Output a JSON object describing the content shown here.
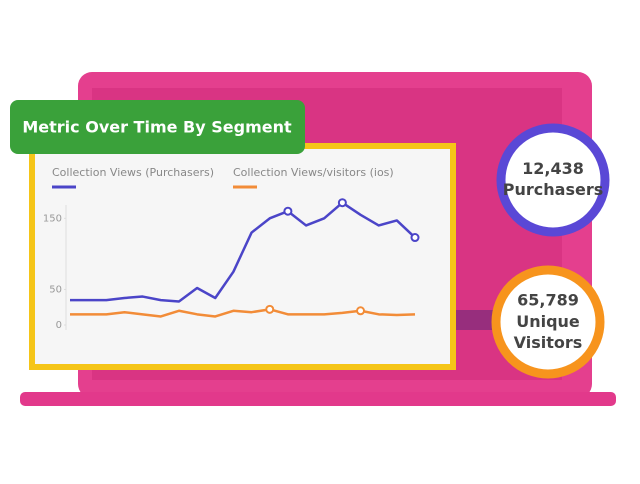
{
  "banner": "Metric Over Time By Segment",
  "badges": [
    {
      "value": "12,438",
      "label": "Purchasers",
      "color": "#5a48d6"
    },
    {
      "value": "65,789",
      "label": "Unique Visitors",
      "color": "#f7941d"
    }
  ],
  "chart_data": {
    "type": "line",
    "series": [
      {
        "name": "Collection Views (Purchasers)",
        "color": "#4b45c8",
        "values": [
          35,
          35,
          35,
          38,
          40,
          35,
          33,
          52,
          38,
          75,
          130,
          150,
          160,
          140,
          150,
          172,
          155,
          140,
          147,
          123
        ],
        "markers": [
          12,
          15,
          19
        ]
      },
      {
        "name": "Collection Views/visitors (ios)",
        "color": "#f28c38",
        "values": [
          15,
          15,
          15,
          18,
          15,
          12,
          20,
          15,
          12,
          20,
          18,
          22,
          15,
          15,
          15,
          17,
          20,
          15,
          14,
          15
        ],
        "markers": [
          11,
          16
        ]
      }
    ],
    "ylim": [
      0,
      180
    ],
    "yticks": [
      0,
      50,
      150
    ]
  }
}
